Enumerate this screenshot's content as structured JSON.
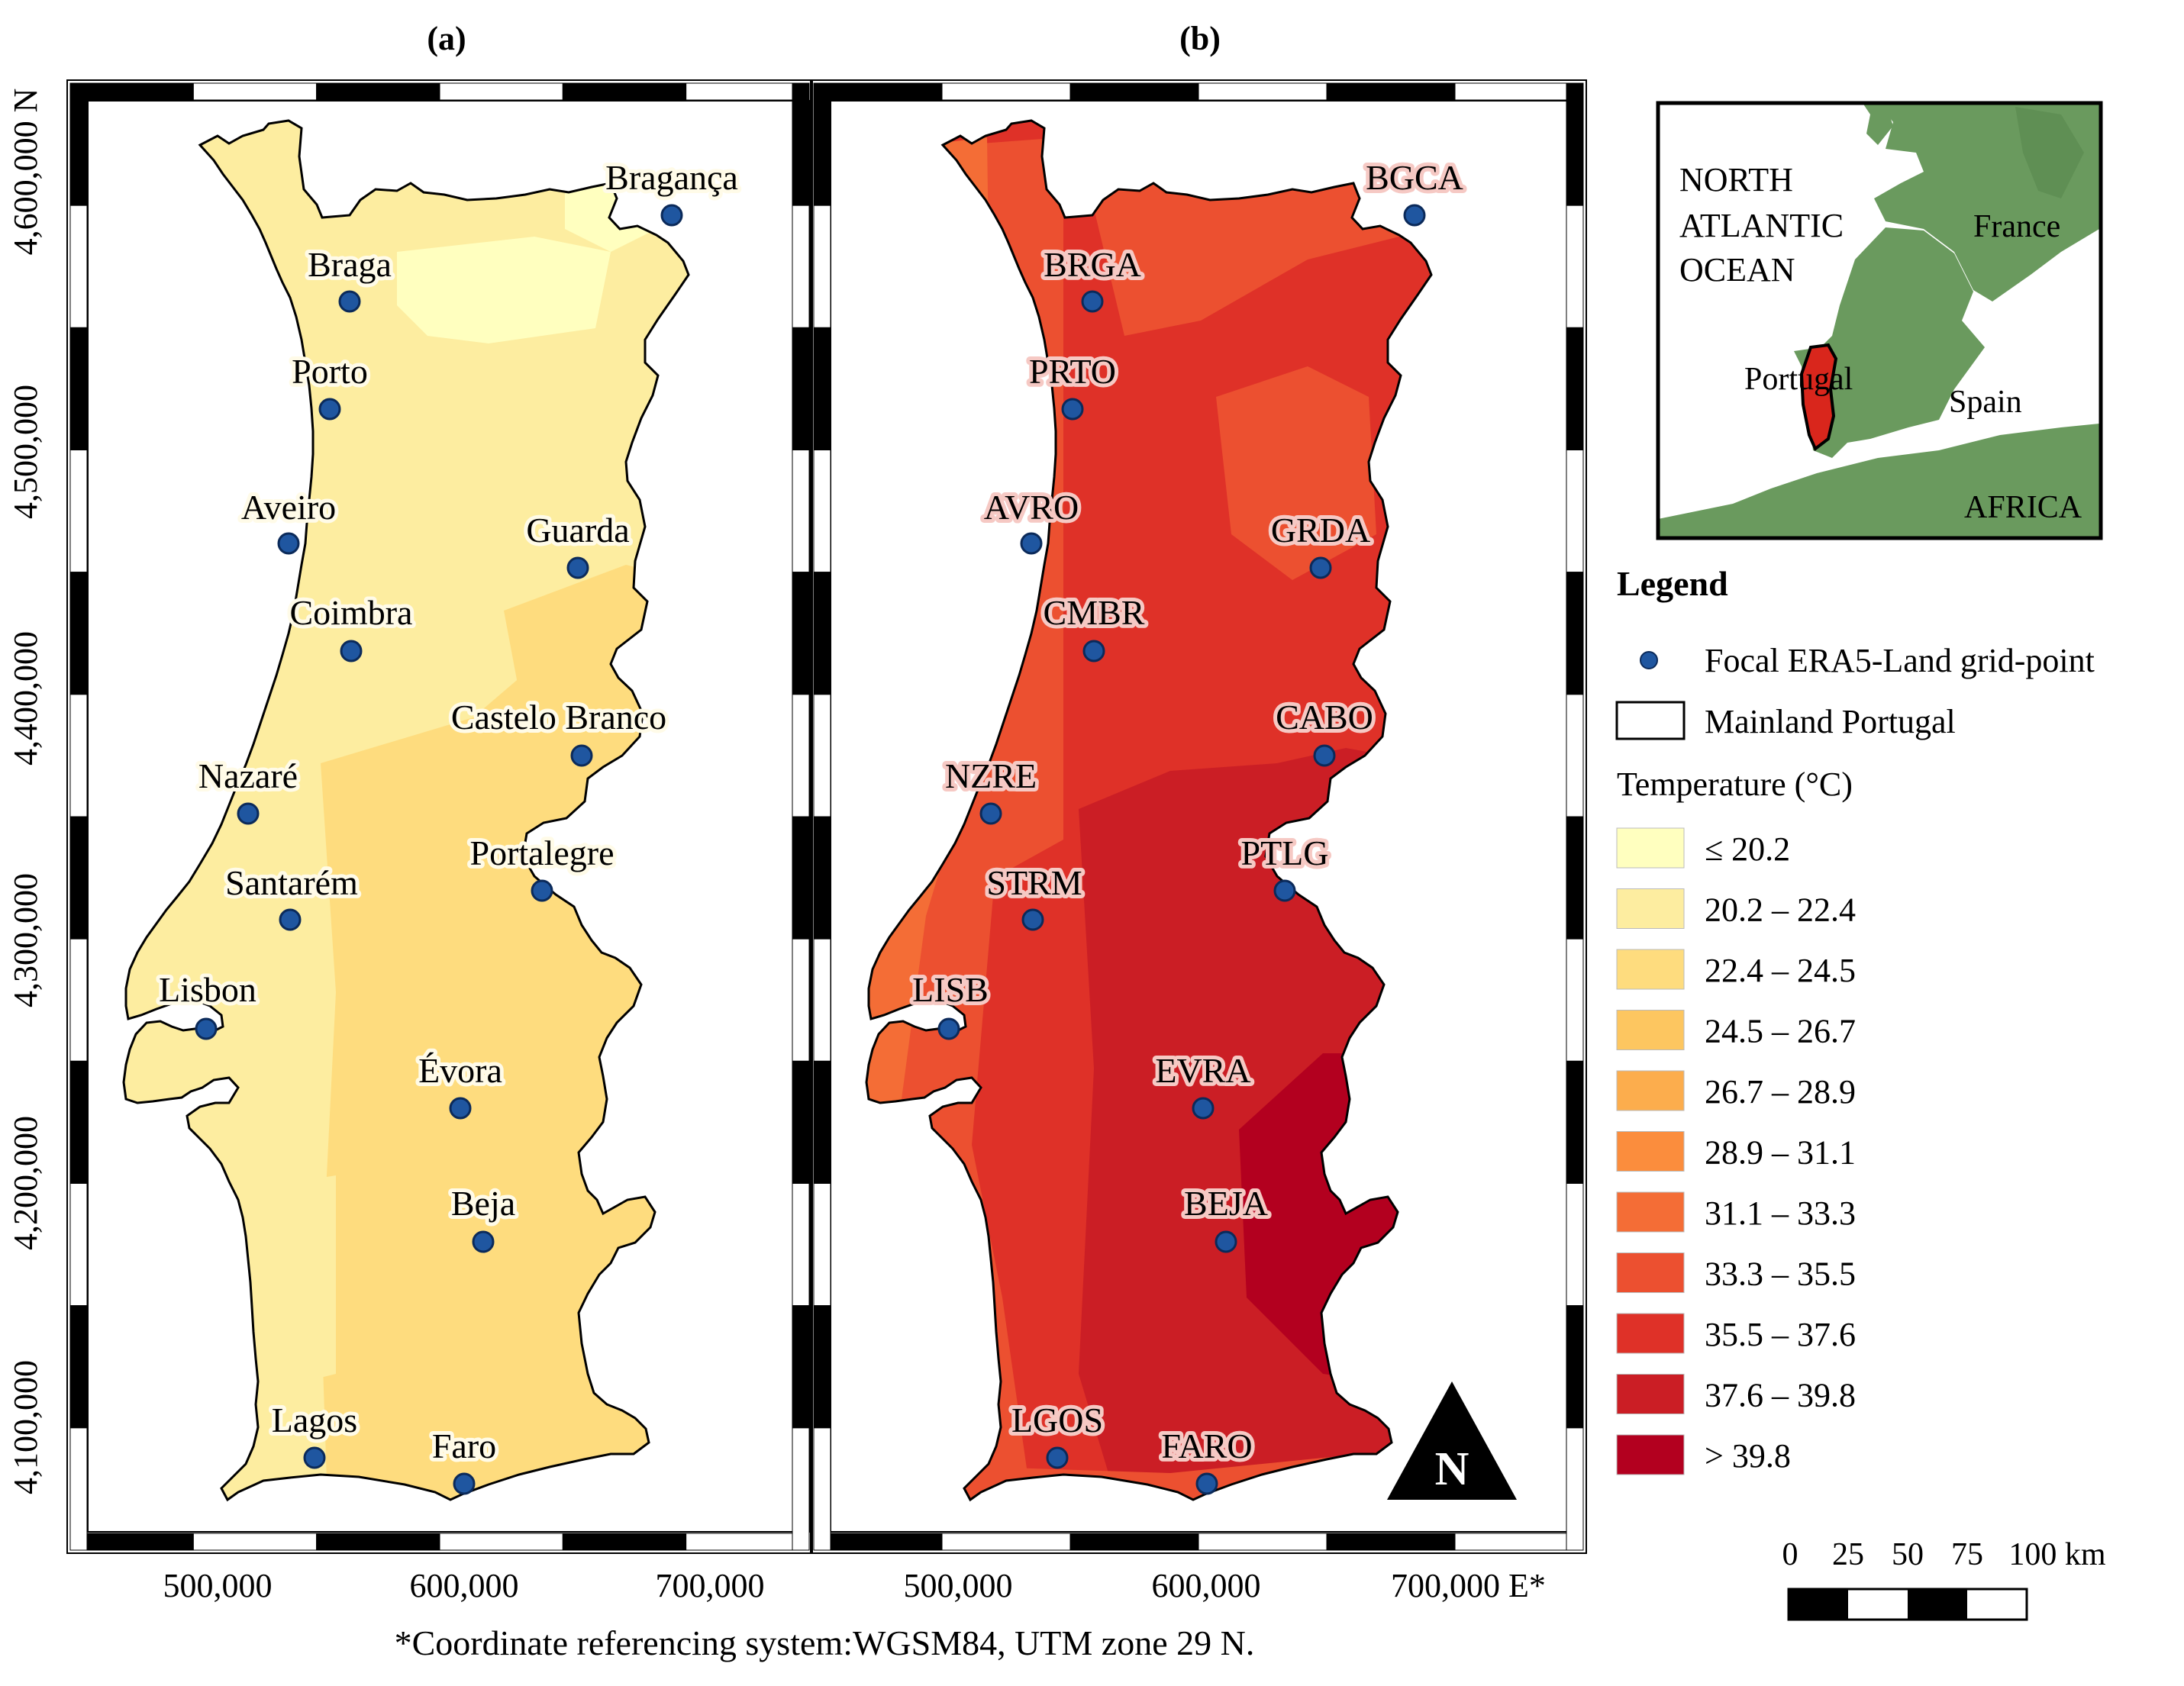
{
  "panels": {
    "a": {
      "label": "(a)"
    },
    "b": {
      "label": "(b)"
    }
  },
  "axes": {
    "x_ticks": [
      "500,000",
      "600,000",
      "700,000"
    ],
    "x_last_suffix": " E*",
    "y_ticks": [
      "4,600,000 N",
      "4,500,000",
      "4,400,000",
      "4,300,000",
      "4,200,000",
      "4,100,000"
    ]
  },
  "footnote": "*Coordinate referencing system:WGSM84, UTM zone 29 N.",
  "cities_a": [
    "Bragança",
    "Braga",
    "Porto",
    "Aveiro",
    "Guarda",
    "Coimbra",
    "Castelo Branco",
    "Nazaré",
    "Portalegre",
    "Santarém",
    "Lisbon",
    "Évora",
    "Beja",
    "Lagos",
    "Faro"
  ],
  "cities_b": [
    "BGCA",
    "BRGA",
    "PRTO",
    "AVRO",
    "GRDA",
    "CMBR",
    "CABO",
    "NZRE",
    "PTLG",
    "STRM",
    "LISB",
    "EVRA",
    "BEJA",
    "LGOS",
    "FARO"
  ],
  "inset": {
    "ocean_label": [
      "NORTH",
      "ATLANTIC",
      "OCEAN"
    ],
    "france": "France",
    "spain": "Spain",
    "portugal": "Portugal",
    "africa": "AFRICA",
    "land_color": "#6a9a5e"
  },
  "north_arrow": "N",
  "legend": {
    "title": "Legend",
    "point_label": "Focal ERA5-Land grid-point",
    "boundary_label": "Mainland Portugal",
    "temp_title": "Temperature (°C)",
    "classes": [
      {
        "label": "≤ 20.2",
        "color": "#ffffbf"
      },
      {
        "label": "20.2 – 22.4",
        "color": "#fdeda0"
      },
      {
        "label": "22.4 – 24.5",
        "color": "#fedc7e"
      },
      {
        "label": "24.5 – 26.7",
        "color": "#fdc660"
      },
      {
        "label": "26.7 – 28.9",
        "color": "#fcad4d"
      },
      {
        "label": "28.9 – 31.1",
        "color": "#fb8d3d"
      },
      {
        "label": "31.1 – 33.3",
        "color": "#f46d36"
      },
      {
        "label": "33.3 – 35.5",
        "color": "#ec5030"
      },
      {
        "label": "35.5 – 37.6",
        "color": "#df3128"
      },
      {
        "label": "37.6 – 39.8",
        "color": "#cb1e25"
      },
      {
        "label": "> 39.8",
        "color": "#b3001f"
      }
    ]
  },
  "scale_bar": {
    "ticks": [
      "0",
      "25",
      "50",
      "75",
      "100 km"
    ]
  }
}
